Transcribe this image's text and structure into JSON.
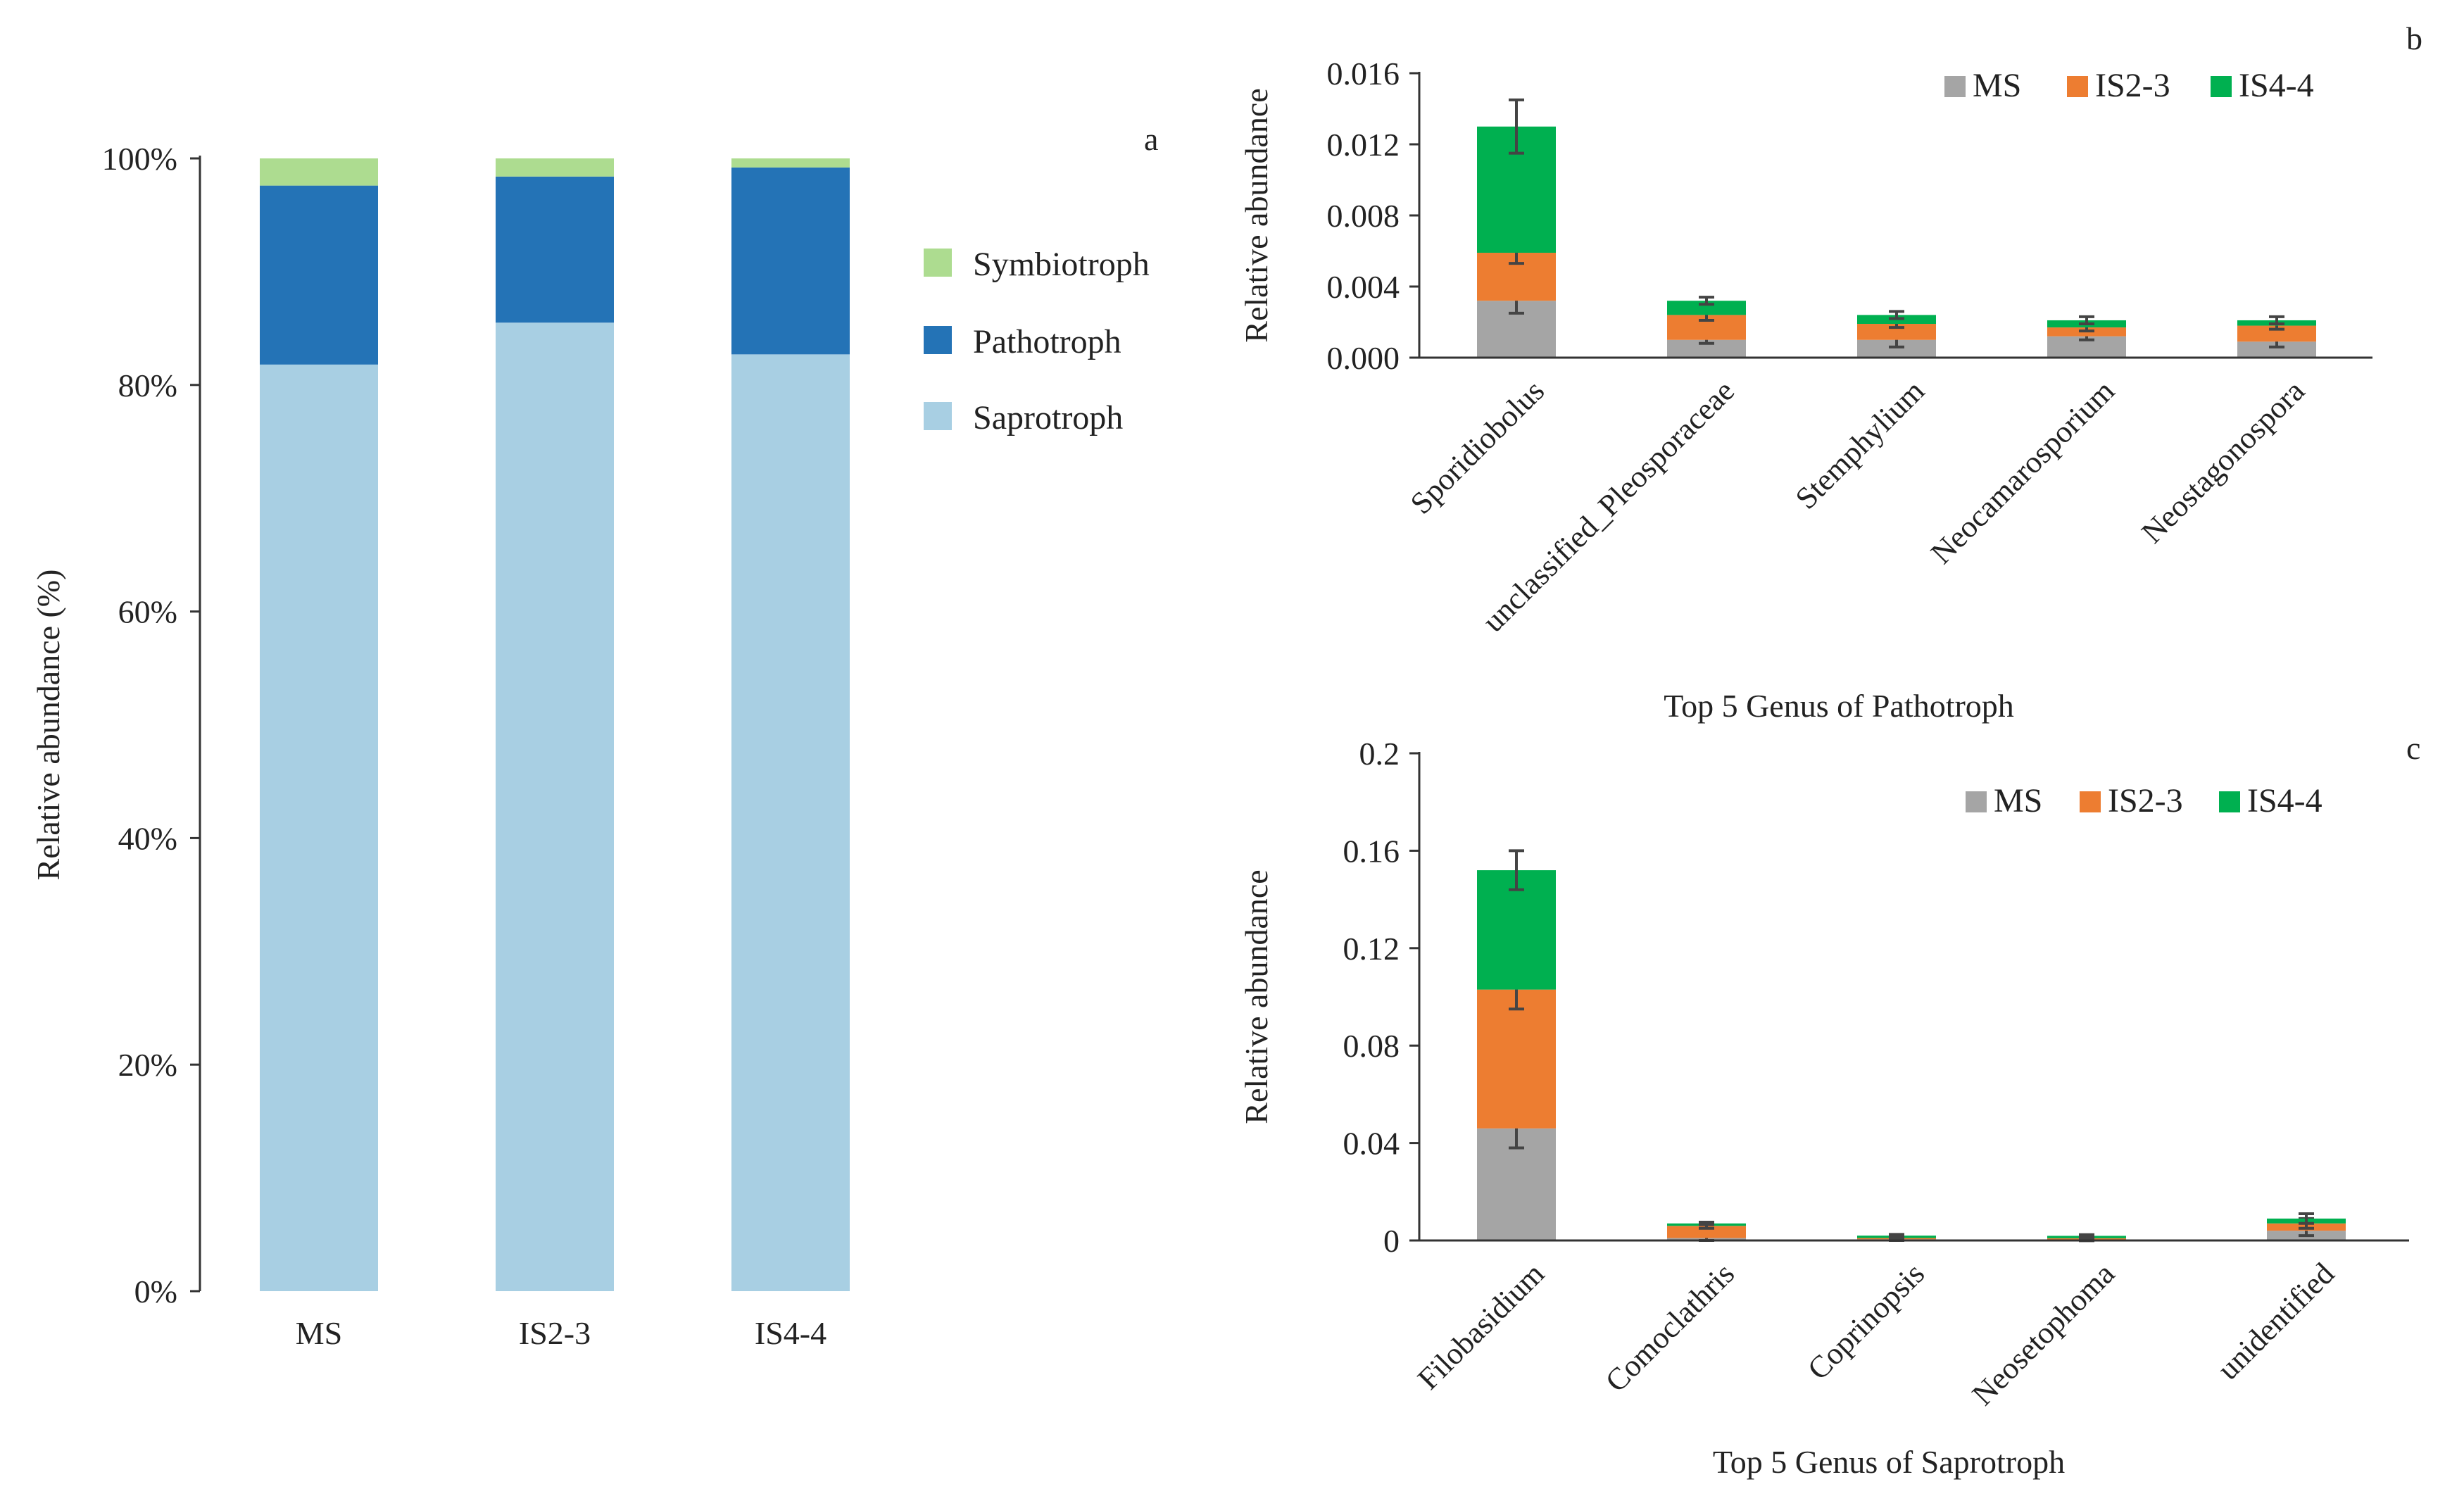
{
  "chart_data": [
    {
      "panel": "a",
      "type": "bar",
      "stacked": true,
      "title": "",
      "xlabel": "",
      "ylabel": "Relative abundance (%)",
      "ylim": [
        0,
        100
      ],
      "yticks": [
        "0%",
        "20%",
        "40%",
        "60%",
        "80%",
        "100%"
      ],
      "categories": [
        "MS",
        "IS2-3",
        "IS4-4"
      ],
      "series": [
        {
          "name": "Saprotroph",
          "color": "#a8cfe3",
          "values": [
            81.8,
            85.5,
            82.7
          ]
        },
        {
          "name": "Pathotroph",
          "color": "#2473b6",
          "values": [
            15.8,
            12.9,
            16.5
          ]
        },
        {
          "name": "Symbiotroph",
          "color": "#addc90",
          "values": [
            2.4,
            1.6,
            0.8
          ]
        }
      ],
      "legend_order": [
        "Symbiotroph",
        "Pathotroph",
        "Saprotroph"
      ],
      "legend": "right",
      "grid": false
    },
    {
      "panel": "b",
      "type": "bar",
      "stacked": true,
      "title": "Top 5 Genus of Pathotroph",
      "xlabel": "",
      "ylabel": "Relative abundance",
      "ylim": [
        0,
        0.016
      ],
      "yticks": [
        "0.000",
        "0.004",
        "0.008",
        "0.012",
        "0.016"
      ],
      "categories": [
        "Sporidiobolus",
        "unclassified_Pleosporaceae",
        "Stemphylium",
        "Neocamarosporium",
        "Neostagonospora"
      ],
      "series": [
        {
          "name": "MS",
          "color": "#a5a5a5",
          "values": [
            0.0032,
            0.001,
            0.001,
            0.0012,
            0.0009
          ],
          "errors": [
            0.0007,
            0.0002,
            0.0004,
            0.0002,
            0.0003
          ]
        },
        {
          "name": "IS2-3",
          "color": "#ed7d31",
          "values": [
            0.0027,
            0.0014,
            0.0009,
            0.0005,
            0.0009
          ],
          "errors": [
            0.0006,
            0.0003,
            0.0002,
            0.0002,
            0.0002
          ]
        },
        {
          "name": "IS4-4",
          "color": "#00b050",
          "values": [
            0.0071,
            0.0008,
            0.0005,
            0.0004,
            0.0003
          ],
          "errors": [
            0.0015,
            0.0002,
            0.0002,
            0.0002,
            0.0002
          ]
        }
      ],
      "legend": "top-right",
      "grid": false
    },
    {
      "panel": "c",
      "type": "bar",
      "stacked": true,
      "title": "Top 5 Genus of Saprotroph",
      "xlabel": "",
      "ylabel": "Relative abundance",
      "ylim": [
        0,
        0.2
      ],
      "yticks": [
        "0",
        "0.04",
        "0.08",
        "0.12",
        "0.16",
        "0.2"
      ],
      "categories": [
        "Filobasidium",
        "Comoclathris",
        "Coprinopsis",
        "Neosetophoma",
        "unidentified"
      ],
      "series": [
        {
          "name": "MS",
          "color": "#a5a5a5",
          "values": [
            0.046,
            0.001,
            0.0005,
            0.0004,
            0.004
          ],
          "errors": [
            0.008,
            0.001,
            0.0005,
            0.0005,
            0.002
          ]
        },
        {
          "name": "IS2-3",
          "color": "#ed7d31",
          "values": [
            0.057,
            0.005,
            0.0005,
            0.0005,
            0.003
          ],
          "errors": [
            0.008,
            0.001,
            0.0005,
            0.0005,
            0.002
          ]
        },
        {
          "name": "IS4-4",
          "color": "#00b050",
          "values": [
            0.049,
            0.001,
            0.001,
            0.001,
            0.002
          ],
          "errors": [
            0.008,
            0.0005,
            0.0005,
            0.0005,
            0.002
          ]
        }
      ],
      "legend": "top-right",
      "grid": false
    }
  ]
}
